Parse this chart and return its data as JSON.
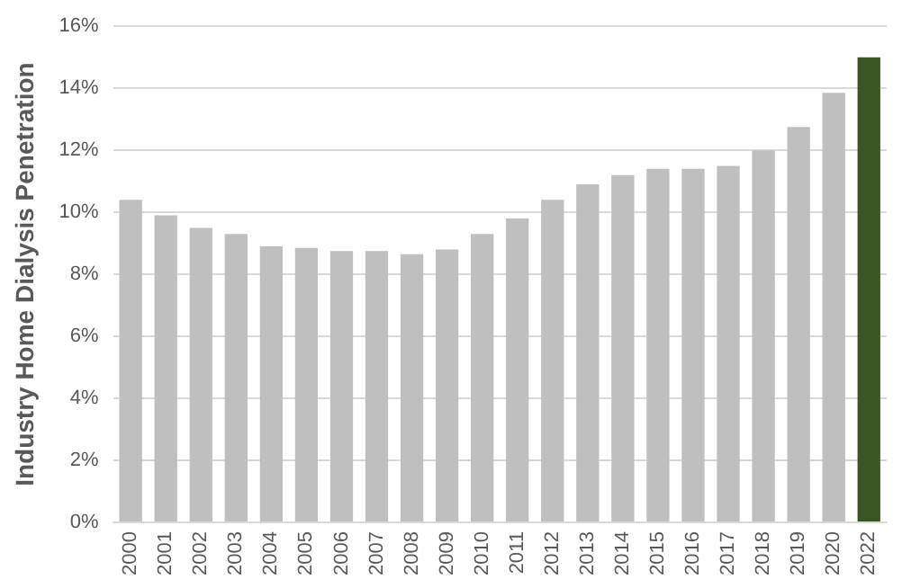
{
  "chart_data": {
    "type": "bar",
    "ylabel": "Industry Home Dialysis Penetration",
    "categories": [
      "2000",
      "2001",
      "2002",
      "2003",
      "2004",
      "2005",
      "2006",
      "2007",
      "2008",
      "2009",
      "2010",
      "2011",
      "2012",
      "2013",
      "2014",
      "2015",
      "2016",
      "2017",
      "2018",
      "2019",
      "2020",
      "2022"
    ],
    "values": [
      10.4,
      9.9,
      9.5,
      9.3,
      8.9,
      8.85,
      8.75,
      8.75,
      8.65,
      8.8,
      9.3,
      9.8,
      10.4,
      10.9,
      11.2,
      11.4,
      11.4,
      11.5,
      12.0,
      12.75,
      13.85,
      15.0
    ],
    "colors": [
      "#bfbfbf",
      "#bfbfbf",
      "#bfbfbf",
      "#bfbfbf",
      "#bfbfbf",
      "#bfbfbf",
      "#bfbfbf",
      "#bfbfbf",
      "#bfbfbf",
      "#bfbfbf",
      "#bfbfbf",
      "#bfbfbf",
      "#bfbfbf",
      "#bfbfbf",
      "#bfbfbf",
      "#bfbfbf",
      "#bfbfbf",
      "#bfbfbf",
      "#bfbfbf",
      "#bfbfbf",
      "#bfbfbf",
      "#375623"
    ],
    "ylim": [
      0,
      16
    ],
    "yticks": [
      {
        "value": 0,
        "label": "0%"
      },
      {
        "value": 2,
        "label": "2%"
      },
      {
        "value": 4,
        "label": "4%"
      },
      {
        "value": 6,
        "label": "6%"
      },
      {
        "value": 8,
        "label": "8%"
      },
      {
        "value": 10,
        "label": "10%"
      },
      {
        "value": 12,
        "label": "12%"
      },
      {
        "value": 14,
        "label": "14%"
      },
      {
        "value": 16,
        "label": "16%"
      }
    ],
    "grid": "y",
    "legend": false
  }
}
